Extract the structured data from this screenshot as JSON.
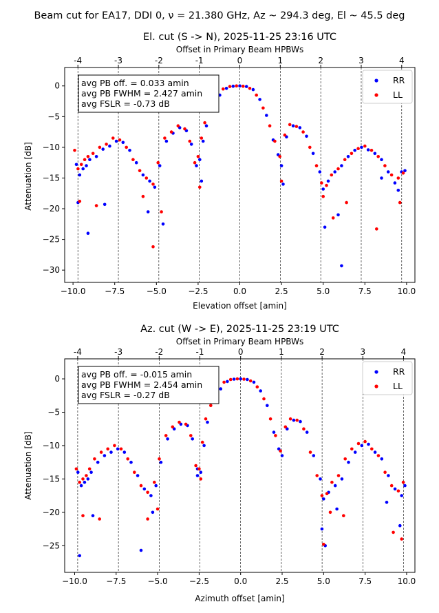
{
  "suptitle": "Beam cut for EA17, DDI 0, ν = 21.380 GHz, Az ~ 294.3 deg, El ~ 45.5 deg",
  "chart_data": [
    {
      "type": "scatter",
      "title": "El. cut (S -> N), 2025-11-25 23:16 UTC",
      "xlabel": "Elevation offset [amin]",
      "ylabel": "Attenuation [dB]",
      "top_xlabel": "Offset in Primary Beam HPBWs",
      "xlim": [
        -10.5,
        10.5
      ],
      "ylim": [
        -32,
        3
      ],
      "xticks": [
        -10.0,
        -7.5,
        -5.0,
        -2.5,
        0.0,
        2.5,
        5.0,
        7.5,
        10.0
      ],
      "xtick_labels": [
        "−10.0",
        "−7.5",
        "−5.0",
        "−2.5",
        "0.0",
        "2.5",
        "5.0",
        "7.5",
        "10.0"
      ],
      "yticks": [
        0,
        -5,
        -10,
        -15,
        -20,
        -25,
        -30
      ],
      "ytick_labels": [
        "0",
        "−5",
        "−10",
        "−15",
        "−20",
        "−25",
        "−30"
      ],
      "hpbw_amin": 2.427,
      "top_ticks": [
        -4,
        -3,
        -2,
        -1,
        0,
        1,
        2,
        3,
        4
      ],
      "top_tick_labels": [
        "-4",
        "-3",
        "-2",
        "-1",
        "0",
        "1",
        "2",
        "3",
        "4"
      ],
      "annotation": [
        "avg PB off. = 0.033 amin",
        "avg PB FWHM = 2.427 amin",
        "avg FSLR = -0.73 dB"
      ],
      "legend_placement": "upper right",
      "grid": "vertical dashed lines at HPBW multiples",
      "series": [
        {
          "name": "RR",
          "color": "#0000ff",
          "x": [
            -9.8,
            -9.6,
            -9.4,
            -9.2,
            -9.0,
            -8.6,
            -8.2,
            -7.8,
            -7.4,
            -7.0,
            -6.6,
            -6.2,
            -5.8,
            -5.4,
            -5.1,
            -4.8,
            -4.4,
            -4.0,
            -3.6,
            -3.2,
            -2.9,
            -2.6,
            -2.4,
            -2.2,
            -2.0,
            -1.6,
            -1.2,
            -0.8,
            -0.4,
            0.0,
            0.4,
            0.8,
            1.2,
            1.6,
            2.0,
            2.3,
            2.5,
            2.8,
            3.2,
            3.6,
            4.0,
            4.4,
            4.8,
            5.0,
            5.3,
            5.7,
            6.1,
            6.5,
            6.9,
            7.3,
            7.7,
            8.1,
            8.5,
            8.9,
            9.3,
            9.7,
            9.9,
            -9.7,
            -9.1,
            -8.1,
            -5.5,
            -4.6,
            -2.3,
            2.6,
            5.1,
            5.9,
            6.1,
            8.5,
            9.5
          ],
          "y": [
            -12.8,
            -14.5,
            -13.5,
            -13.0,
            -12.0,
            -11.5,
            -10.3,
            -9.8,
            -9.0,
            -9.2,
            -10.5,
            -12.5,
            -14.5,
            -15.5,
            -16.5,
            -13.0,
            -9.0,
            -7.7,
            -6.8,
            -7.3,
            -9.5,
            -13.0,
            -12.0,
            -9.0,
            -6.5,
            -3.5,
            -1.5,
            -0.4,
            -0.05,
            0.0,
            -0.1,
            -0.6,
            -2.2,
            -4.8,
            -8.8,
            -11.2,
            -13.0,
            -8.3,
            -6.5,
            -6.8,
            -8.2,
            -11.0,
            -14.0,
            -16.8,
            -15.5,
            -14.0,
            -13.0,
            -11.5,
            -10.5,
            -10.0,
            -10.4,
            -11.0,
            -12.0,
            -14.0,
            -15.8,
            -14.0,
            -13.8,
            -19.0,
            -24.0,
            -19.3,
            -20.5,
            -22.5,
            -15.5,
            -16.0,
            -23.0,
            -21.0,
            -29.3,
            -15.0,
            -17.0
          ]
        },
        {
          "name": "LL",
          "color": "#ff0000",
          "x": [
            -9.9,
            -9.7,
            -9.5,
            -9.3,
            -9.1,
            -8.8,
            -8.4,
            -8.0,
            -7.6,
            -7.2,
            -6.8,
            -6.4,
            -6.0,
            -5.6,
            -5.2,
            -4.9,
            -4.5,
            -4.1,
            -3.7,
            -3.3,
            -3.0,
            -2.7,
            -2.5,
            -2.3,
            -2.1,
            -1.8,
            -1.4,
            -1.0,
            -0.6,
            -0.2,
            0.2,
            0.6,
            1.0,
            1.4,
            1.8,
            2.1,
            2.4,
            2.7,
            3.0,
            3.4,
            3.8,
            4.2,
            4.6,
            4.9,
            5.2,
            5.5,
            5.9,
            6.3,
            6.7,
            7.1,
            7.5,
            7.9,
            8.3,
            8.7,
            9.1,
            9.5,
            9.8,
            -9.6,
            -8.6,
            -5.8,
            -5.2,
            -4.7,
            -2.4,
            2.5,
            5.0,
            5.6,
            6.4,
            8.2,
            9.6
          ],
          "y": [
            -10.5,
            -13.5,
            -12.8,
            -12.0,
            -11.5,
            -11.0,
            -10.0,
            -9.5,
            -8.5,
            -8.8,
            -10.0,
            -12.0,
            -13.8,
            -15.0,
            -16.0,
            -12.5,
            -8.5,
            -7.5,
            -6.5,
            -7.0,
            -9.0,
            -12.5,
            -11.5,
            -8.5,
            -6.0,
            -4.0,
            -1.8,
            -0.5,
            -0.1,
            0.0,
            -0.05,
            -0.4,
            -1.5,
            -3.6,
            -6.5,
            -9.0,
            -11.5,
            -8.0,
            -6.3,
            -6.6,
            -7.5,
            -10.0,
            -13.0,
            -15.8,
            -16.2,
            -14.5,
            -13.5,
            -12.0,
            -11.0,
            -10.2,
            -9.8,
            -10.5,
            -11.5,
            -13.0,
            -14.5,
            -15.0,
            -14.2,
            -18.8,
            -19.5,
            -18.0,
            -26.2,
            -20.5,
            -16.5,
            -15.5,
            -18.0,
            -21.5,
            -19.0,
            -23.3,
            -19.0
          ]
        }
      ]
    },
    {
      "type": "scatter",
      "title": "Az. cut (W -> E), 2025-11-25 23:19 UTC",
      "xlabel": "Azimuth offset [amin]",
      "ylabel": "Attenuation [dB]",
      "top_xlabel": "Offset in Primary Beam HPBWs",
      "xlim": [
        -10.6,
        10.5
      ],
      "ylim": [
        -29,
        3
      ],
      "xticks": [
        -10.0,
        -7.5,
        -5.0,
        -2.5,
        0.0,
        2.5,
        5.0,
        7.5,
        10.0
      ],
      "xtick_labels": [
        "−10.0",
        "−7.5",
        "−5.0",
        "−2.5",
        "0.0",
        "2.5",
        "5.0",
        "7.5",
        "10.0"
      ],
      "yticks": [
        0,
        -5,
        -10,
        -15,
        -20,
        -25
      ],
      "ytick_labels": [
        "0",
        "−5",
        "−10",
        "−15",
        "−20",
        "−25"
      ],
      "hpbw_amin": 2.454,
      "top_ticks": [
        -4,
        -3,
        -2,
        -1,
        0,
        1,
        2,
        3,
        4
      ],
      "top_tick_labels": [
        "-4",
        "-3",
        "-2",
        "-1",
        "0",
        "1",
        "2",
        "3",
        "4"
      ],
      "annotation": [
        "avg PB off. = -0.015 amin",
        "avg PB FWHM = 2.454 amin",
        "avg FSLR = -0.27 dB"
      ],
      "legend_placement": "upper right",
      "grid": "vertical dashed lines at HPBW multiples",
      "series": [
        {
          "name": "RR",
          "color": "#0000ff",
          "x": [
            -9.8,
            -9.6,
            -9.4,
            -9.2,
            -9.0,
            -8.6,
            -8.2,
            -7.8,
            -7.4,
            -7.0,
            -6.6,
            -6.2,
            -5.8,
            -5.4,
            -5.1,
            -4.8,
            -4.4,
            -4.0,
            -3.6,
            -3.2,
            -2.9,
            -2.6,
            -2.4,
            -2.2,
            -2.0,
            -1.6,
            -1.2,
            -0.8,
            -0.4,
            0.0,
            0.4,
            0.8,
            1.2,
            1.6,
            2.0,
            2.3,
            2.5,
            2.8,
            3.2,
            3.6,
            4.0,
            4.4,
            4.8,
            5.0,
            5.3,
            5.7,
            6.1,
            6.5,
            6.9,
            7.3,
            7.7,
            8.1,
            8.5,
            8.9,
            9.3,
            9.7,
            9.9,
            -9.7,
            -8.9,
            -6.0,
            -5.3,
            -2.6,
            4.9,
            5.1,
            5.8,
            8.8,
            9.6
          ],
          "y": [
            -14.0,
            -16.0,
            -15.5,
            -15.0,
            -14.0,
            -12.5,
            -11.5,
            -11.0,
            -10.5,
            -11.0,
            -12.5,
            -14.5,
            -16.5,
            -17.5,
            -16.0,
            -12.5,
            -9.0,
            -7.5,
            -6.8,
            -7.0,
            -9.0,
            -13.5,
            -14.0,
            -10.0,
            -6.5,
            -3.5,
            -1.5,
            -0.4,
            -0.05,
            0.0,
            -0.1,
            -0.5,
            -1.8,
            -4.0,
            -8.0,
            -10.5,
            -11.5,
            -7.5,
            -6.2,
            -6.4,
            -8.0,
            -11.5,
            -15.0,
            -18.0,
            -17.0,
            -16.0,
            -15.0,
            -12.5,
            -11.0,
            -10.0,
            -9.8,
            -11.0,
            -12.0,
            -14.5,
            -16.5,
            -17.5,
            -16.0,
            -26.5,
            -20.5,
            -25.7,
            -20.0,
            -14.5,
            -22.5,
            -25.0,
            -19.5,
            -18.5,
            -22.0
          ]
        },
        {
          "name": "LL",
          "color": "#ff0000",
          "x": [
            -9.9,
            -9.7,
            -9.5,
            -9.3,
            -9.1,
            -8.8,
            -8.4,
            -8.0,
            -7.6,
            -7.2,
            -6.8,
            -6.4,
            -6.0,
            -5.6,
            -5.2,
            -4.9,
            -4.5,
            -4.1,
            -3.7,
            -3.3,
            -3.0,
            -2.7,
            -2.5,
            -2.3,
            -2.1,
            -1.8,
            -1.4,
            -1.0,
            -0.6,
            -0.2,
            0.2,
            0.6,
            1.0,
            1.4,
            1.8,
            2.1,
            2.4,
            2.7,
            3.0,
            3.4,
            3.8,
            4.2,
            4.6,
            4.9,
            5.2,
            5.5,
            5.9,
            6.3,
            6.7,
            7.1,
            7.5,
            7.9,
            8.3,
            8.7,
            9.1,
            9.5,
            9.8,
            -9.5,
            -8.5,
            -5.6,
            -5.0,
            -2.4,
            5.0,
            5.4,
            6.2,
            9.2,
            9.7
          ],
          "y": [
            -13.5,
            -15.5,
            -15.0,
            -14.5,
            -13.5,
            -12.0,
            -11.0,
            -10.5,
            -10.0,
            -10.5,
            -12.0,
            -14.0,
            -16.0,
            -17.0,
            -15.5,
            -12.0,
            -8.5,
            -7.2,
            -6.5,
            -6.8,
            -8.5,
            -13.0,
            -13.5,
            -9.5,
            -6.0,
            -4.0,
            -1.8,
            -0.5,
            -0.1,
            0.0,
            -0.05,
            -0.3,
            -1.2,
            -3.0,
            -6.0,
            -8.5,
            -10.8,
            -7.2,
            -6.0,
            -6.2,
            -7.5,
            -11.0,
            -14.5,
            -17.5,
            -17.2,
            -15.5,
            -14.5,
            -12.0,
            -10.5,
            -9.7,
            -9.4,
            -10.5,
            -11.5,
            -14.0,
            -16.0,
            -16.8,
            -15.5,
            -20.5,
            -21.0,
            -21.0,
            -19.5,
            -15.0,
            -24.8,
            -20.0,
            -20.5,
            -23.0,
            -24.0
          ]
        }
      ]
    }
  ]
}
